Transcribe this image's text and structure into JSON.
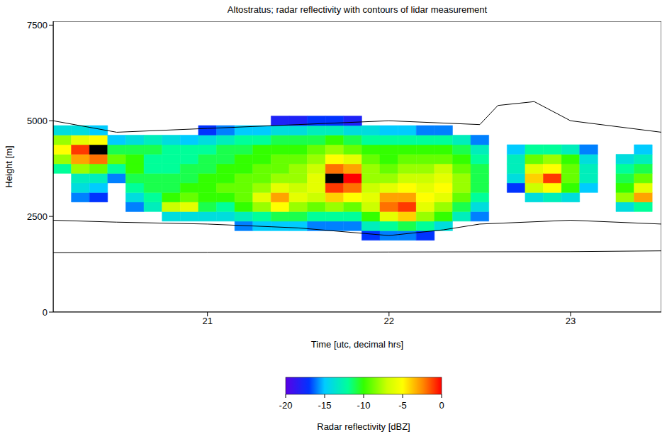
{
  "chart_data": {
    "type": "heatmap",
    "title": "Altostratus; radar reflectivity with contours of lidar measurement",
    "xlabel": "Time [utc, decimal hrs]",
    "ylabel": "Height [m]",
    "xlim": [
      20.15,
      23.5
    ],
    "xticks": [
      21,
      22,
      23
    ],
    "ylim": [
      0,
      7600
    ],
    "yticks": [
      0,
      2500,
      5000,
      7500
    ],
    "grid": false,
    "cells": {
      "x": [
        20.2,
        20.3,
        20.4,
        20.5,
        20.6,
        20.7,
        20.8,
        20.9,
        21.0,
        21.1,
        21.2,
        21.3,
        21.4,
        21.5,
        21.6,
        21.7,
        21.8,
        21.9,
        22.0,
        22.1,
        22.2,
        22.3,
        22.4,
        22.5,
        22.6,
        22.7,
        22.8,
        22.9,
        23.0,
        23.1,
        23.2,
        23.3,
        23.4
      ],
      "y": [
        2000,
        2250,
        2500,
        2750,
        3000,
        3250,
        3500,
        3750,
        4000,
        4250,
        4500,
        4750,
        5000
      ],
      "values": [
        [
          null,
          null,
          null,
          null,
          null,
          null,
          null,
          -12,
          -8,
          -5,
          -8,
          -14,
          null
        ],
        [
          null,
          null,
          null,
          null,
          -16,
          -14,
          -13,
          -8,
          -3,
          -1,
          -6,
          -14,
          null
        ],
        [
          null,
          null,
          null,
          null,
          -17,
          -15,
          -13,
          -9,
          -2,
          2,
          -5,
          -15,
          null
        ],
        [
          null,
          null,
          null,
          null,
          null,
          null,
          -16,
          -12,
          -9,
          -11,
          -15,
          null,
          null
        ],
        [
          null,
          null,
          null,
          -16,
          -14,
          -12,
          -11,
          -10,
          -10,
          -11,
          -14,
          null,
          null
        ],
        [
          null,
          null,
          null,
          -13,
          -12,
          -11,
          -11,
          -12,
          -12,
          -11,
          -13,
          null,
          null
        ],
        [
          null,
          null,
          -14,
          -7,
          -10,
          -11,
          -11,
          -12,
          -12,
          -12,
          -14,
          null,
          null
        ],
        [
          null,
          null,
          -14,
          -6,
          -9,
          -10,
          -11,
          -11,
          -12,
          -12,
          -15,
          null,
          null
        ],
        [
          null,
          null,
          -14,
          -11,
          -10,
          -10,
          -10,
          -11,
          -11,
          -12,
          -14,
          -17,
          null
        ],
        [
          null,
          null,
          -14,
          -12,
          -10,
          -9,
          -10,
          -10,
          -11,
          -11,
          -13,
          -16,
          null
        ],
        [
          null,
          -16,
          -13,
          -10,
          -9,
          -9,
          -9,
          -10,
          -10,
          -11,
          -12,
          -15,
          null
        ],
        [
          null,
          -15,
          -12,
          -8,
          -6,
          -8,
          -9,
          -9,
          -10,
          -10,
          -12,
          -15,
          null
        ],
        [
          null,
          -15,
          -11,
          -5,
          -3,
          -6,
          -8,
          -9,
          -9,
          -10,
          -11,
          -14,
          -18
        ],
        [
          null,
          -15,
          -11,
          -8,
          -6,
          -7,
          -8,
          -8,
          -9,
          -10,
          -11,
          -14,
          -18
        ],
        [
          null,
          -16,
          -12,
          -9,
          -7,
          -6,
          -6,
          -7,
          -8,
          -9,
          -11,
          -13,
          -17
        ],
        [
          null,
          -16,
          -12,
          -8,
          -4,
          -1,
          1,
          -2,
          -5,
          -8,
          -10,
          -13,
          -17
        ],
        [
          null,
          -16,
          -12,
          -9,
          -5,
          -2,
          0,
          -3,
          -6,
          -9,
          -11,
          -14,
          -18
        ],
        [
          -17,
          -13,
          -10,
          -7,
          -6,
          -7,
          -8,
          -8,
          -9,
          -10,
          -12,
          -14,
          null
        ],
        [
          -16,
          -12,
          -6,
          -2,
          -3,
          -6,
          -8,
          -9,
          -10,
          -10,
          -12,
          -15,
          null
        ],
        [
          -16,
          -11,
          -4,
          -1,
          -3,
          -5,
          -7,
          -8,
          -9,
          -10,
          -12,
          -15,
          null
        ],
        [
          -17,
          -12,
          -8,
          -6,
          -5,
          -6,
          -7,
          -8,
          -9,
          -10,
          -12,
          -16,
          null
        ],
        [
          null,
          -14,
          -10,
          -8,
          -6,
          -5,
          -6,
          -7,
          -9,
          -10,
          -12,
          -16,
          null
        ],
        [
          null,
          null,
          -13,
          -11,
          -9,
          -8,
          -8,
          -9,
          -10,
          -11,
          -13,
          null,
          null
        ],
        [
          null,
          null,
          -16,
          -14,
          -12,
          -11,
          -11,
          -11,
          -12,
          -13,
          -16,
          null,
          null
        ],
        [
          null,
          null,
          null,
          null,
          null,
          null,
          null,
          null,
          null,
          null,
          null,
          null,
          null
        ],
        [
          null,
          null,
          null,
          null,
          null,
          -17,
          -14,
          -13,
          -13,
          -15,
          null,
          null,
          null
        ],
        [
          null,
          null,
          null,
          null,
          -14,
          -7,
          -4,
          -6,
          -9,
          -12,
          null,
          null,
          null
        ],
        [
          null,
          null,
          null,
          null,
          -13,
          -5,
          -1,
          -5,
          -8,
          -12,
          null,
          null,
          null
        ],
        [
          null,
          null,
          null,
          null,
          -14,
          -10,
          -9,
          -9,
          -10,
          -13,
          null,
          null,
          null
        ],
        [
          null,
          null,
          null,
          null,
          null,
          -15,
          -13,
          -13,
          -14,
          -16,
          null,
          null,
          null
        ],
        [
          null,
          null,
          null,
          null,
          null,
          null,
          null,
          null,
          null,
          null,
          null,
          null,
          null
        ],
        [
          null,
          null,
          null,
          -14,
          -8,
          -10,
          -11,
          -12,
          -14,
          null,
          null,
          null,
          null
        ],
        [
          null,
          null,
          null,
          -12,
          -3,
          -6,
          -9,
          -11,
          -13,
          -15,
          null,
          null,
          null
        ]
      ]
    },
    "contours": [
      {
        "x": [
          20.15,
          21,
          22,
          23,
          23.5
        ],
        "y": [
          1550,
          1560,
          1570,
          1580,
          1600
        ],
        "color": "#000000"
      },
      {
        "x": [
          20.15,
          20.5,
          21,
          21.5,
          22,
          22.3,
          22.5,
          23,
          23.5
        ],
        "y": [
          2400,
          2350,
          2300,
          2200,
          2000,
          2150,
          2300,
          2400,
          2300
        ],
        "color": "#000000"
      },
      {
        "x": [
          20.15,
          20.5,
          21,
          21.5,
          22,
          22.5,
          22.6,
          22.8,
          23,
          23.5
        ],
        "y": [
          5000,
          4700,
          4800,
          4900,
          5000,
          4900,
          5400,
          5500,
          5000,
          4700
        ],
        "color": "#000000"
      }
    ],
    "colorbar": {
      "range": [
        -20,
        0
      ],
      "ticks": [
        -20,
        -15,
        -10,
        -5,
        0
      ],
      "label": "Radar reflectivity [dBZ]"
    }
  }
}
